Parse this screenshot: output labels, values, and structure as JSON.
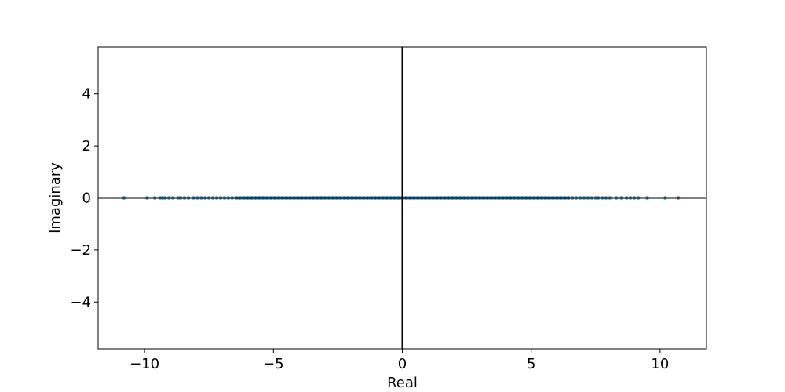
{
  "chart_data": {
    "type": "scatter",
    "title": "",
    "xlabel": "Real",
    "ylabel": "Imaginary",
    "xlim": [
      -11.8,
      11.8
    ],
    "ylim": [
      -5.8,
      5.8
    ],
    "xticks": [
      -10,
      -5,
      0,
      5,
      10
    ],
    "yticks": [
      -4,
      -2,
      0,
      2,
      4
    ],
    "xtick_labels": [
      "−10",
      "−5",
      "0",
      "5",
      "10"
    ],
    "ytick_labels": [
      "−4",
      "−2",
      "0",
      "2",
      "4"
    ],
    "grid": false,
    "reference_lines": {
      "x": 0,
      "y": 0
    },
    "marker_color": "#1f77b4",
    "series": [
      {
        "x": [
          -10.8,
          -9.9,
          -9.6,
          -9.4,
          -9.3,
          -9.2,
          -9.05,
          -8.9,
          -8.7,
          -8.6,
          -8.45,
          -8.3,
          -8.1,
          -7.95,
          -7.8,
          -7.65,
          -7.5,
          -7.35,
          -7.2,
          -7.05,
          -6.9,
          -6.75,
          -6.6,
          -6.45,
          -6.3,
          -6.15,
          -6.0,
          -5.85,
          -5.7,
          -5.55,
          -5.4,
          -5.25,
          -5.1,
          -4.95,
          -4.8,
          -4.65,
          -4.5,
          -4.35,
          -4.2,
          -4.05,
          -3.9,
          -3.75,
          -3.6,
          -3.45,
          -3.3,
          -3.15,
          -3.0,
          -2.85,
          -2.7,
          -2.55,
          -2.4,
          -2.25,
          -2.1,
          -1.95,
          -1.8,
          -1.65,
          -1.5,
          -1.35,
          -1.2,
          -1.05,
          -0.9,
          -0.75,
          -0.6,
          -0.45,
          -0.3,
          -0.15,
          0.0,
          0.15,
          0.3,
          0.45,
          0.6,
          0.75,
          0.9,
          1.05,
          1.2,
          1.35,
          1.5,
          1.65,
          1.8,
          1.95,
          2.1,
          2.25,
          2.4,
          2.55,
          2.7,
          2.85,
          3.0,
          3.15,
          3.3,
          3.45,
          3.6,
          3.75,
          3.9,
          4.05,
          4.2,
          4.35,
          4.5,
          4.65,
          4.8,
          4.95,
          5.1,
          5.25,
          5.4,
          5.55,
          5.7,
          5.85,
          6.0,
          6.15,
          6.3,
          6.45,
          6.6,
          6.75,
          6.9,
          7.05,
          7.2,
          7.35,
          7.5,
          7.6,
          7.75,
          7.9,
          8.05,
          8.3,
          8.5,
          8.7,
          8.85,
          9.0,
          9.15,
          9.5,
          10.2,
          10.7
        ],
        "y": [
          0,
          0,
          0,
          0,
          0,
          0,
          0,
          0,
          0,
          0,
          0,
          0,
          0,
          0,
          0,
          0,
          0,
          0,
          0,
          0,
          0,
          0,
          0,
          0,
          0,
          0,
          0,
          0,
          0,
          0,
          0,
          0,
          0,
          0,
          0,
          0,
          0,
          0,
          0,
          0,
          0,
          0,
          0,
          0,
          0,
          0,
          0,
          0,
          0,
          0,
          0,
          0,
          0,
          0,
          0,
          0,
          0,
          0,
          0,
          0,
          0,
          0,
          0,
          0,
          0,
          0,
          0,
          0,
          0,
          0,
          0,
          0,
          0,
          0,
          0,
          0,
          0,
          0,
          0,
          0,
          0,
          0,
          0,
          0,
          0,
          0,
          0,
          0,
          0,
          0,
          0,
          0,
          0,
          0,
          0,
          0,
          0,
          0,
          0,
          0,
          0,
          0,
          0,
          0,
          0,
          0,
          0,
          0,
          0,
          0,
          0,
          0,
          0,
          0,
          0,
          0,
          0,
          0,
          0,
          0,
          0,
          0,
          0,
          0,
          0,
          0,
          0,
          0,
          0,
          0
        ]
      }
    ]
  }
}
